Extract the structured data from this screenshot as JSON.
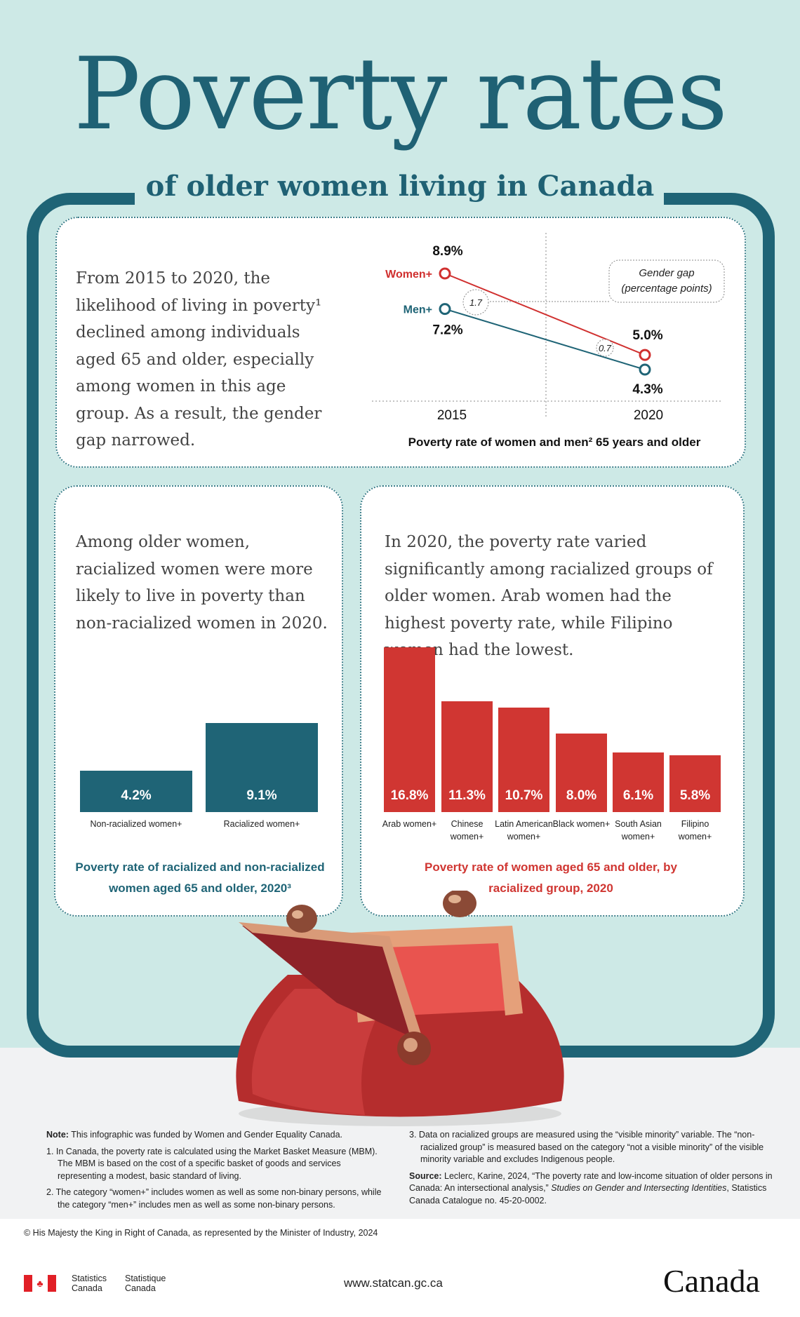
{
  "title": "Poverty rates",
  "subtitle": "of older women living in Canada",
  "panel1": {
    "text": "From 2015 to 2020, the likelihood of living in poverty¹ declined among individuals aged 65 and older, especially among women in this age group. As a result, the gender gap narrowed."
  },
  "panel2": {
    "text": "Among older women, racialized women were more likely to live in poverty than non-racialized women in 2020."
  },
  "panel3": {
    "text": "In 2020, the poverty rate varied significantly among racialized groups of older women. Arab women had the highest poverty rate, while Filipino women had the lowest."
  },
  "chart_data": [
    {
      "type": "line",
      "title": "Poverty rate of women and men² 65 years and older",
      "x": [
        "2015",
        "2020"
      ],
      "series": [
        {
          "name": "Women+",
          "values": [
            8.9,
            5.0
          ],
          "labels": [
            "8.9%",
            "5.0%"
          ],
          "color": "#d0302f"
        },
        {
          "name": "Men+",
          "values": [
            7.2,
            4.3
          ],
          "labels": [
            "7.2%",
            "4.3%"
          ],
          "color": "#1f6476"
        }
      ],
      "gap_legend": "Gender gap (percentage points)",
      "gaps": [
        "1.7",
        "0.7"
      ]
    },
    {
      "type": "bar",
      "title": "Poverty rate of racialized and non-racialized women aged 65 and older, 2020³",
      "categories": [
        "Non-racialized women+",
        "Racialized women+"
      ],
      "values": [
        4.2,
        9.1
      ],
      "labels": [
        "4.2%",
        "9.1%"
      ],
      "color": "#1f6476"
    },
    {
      "type": "bar",
      "title": "Poverty rate of women aged 65 and older, by racialized group, 2020",
      "categories": [
        "Arab women+",
        "Chinese women+",
        "Latin American women+",
        "Black women+",
        "South Asian women+",
        "Filipino women+"
      ],
      "values": [
        16.8,
        11.3,
        10.7,
        8.0,
        6.1,
        5.8
      ],
      "labels": [
        "16.8%",
        "11.3%",
        "10.7%",
        "8.0%",
        "6.1%",
        "5.8%"
      ],
      "color": "#d03632"
    }
  ],
  "notes": {
    "note_label": "Note:",
    "note": " This infographic was funded by Women and Gender Equality Canada.",
    "n1": "1. In Canada, the poverty rate is calculated using the Market Basket Measure (MBM). The MBM is based on the cost of a specific basket of goods and services representing a modest, basic standard of living.",
    "n2": "2. The category “women+” includes women as well as some non-binary persons, while the category “men+” includes men as well as some non-binary persons.",
    "n3": "3. Data on racialized groups are measured using the “visible minority” variable. The “non-racialized group” is measured based on the category “not a visible minority” of the visible minority variable and excludes Indigenous people.",
    "source_label": "Source:",
    "source": " Leclerc, Karine, 2024, “The poverty rate and low-income situation of older persons in Canada: An intersectional analysis,” ",
    "source_pub": "Studies on Gender and Intersecting Identities",
    ", ": "",
    "source_end": ", Statistics Canada Catalogue no. 45-20-0002."
  },
  "footer": {
    "copyright": "© His Majesty the King in Right of Canada, as represented by the Minister of Industry, 2024",
    "stat_en": "Statistics Canada",
    "stat_fr": "Statistique Canada",
    "url": "www.statcan.gc.ca",
    "wordmark": "Canada"
  }
}
